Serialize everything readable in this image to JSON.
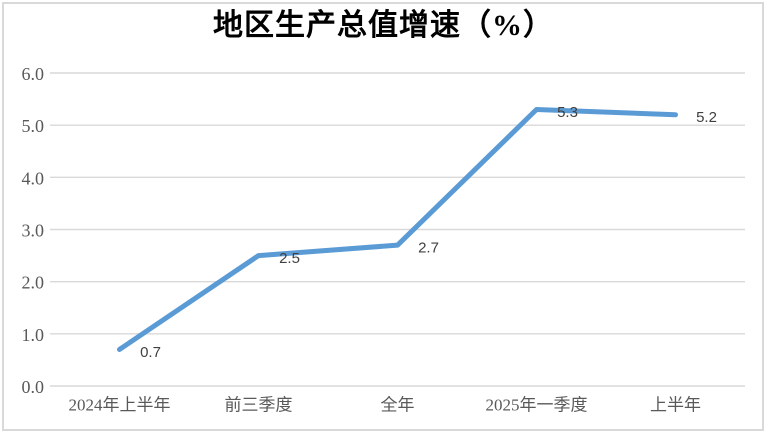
{
  "chart_data": {
    "type": "line",
    "title": "地区生产总值增速（%）",
    "categories": [
      "2024年上半年",
      "前三季度",
      "全年",
      "2025年一季度",
      "上半年"
    ],
    "values": [
      0.7,
      2.5,
      2.7,
      5.3,
      5.2
    ],
    "data_labels": [
      "0.7",
      "2.5",
      "2.7",
      "5.3",
      "5.2"
    ],
    "y_ticks": [
      "0.0",
      "1.0",
      "2.0",
      "3.0",
      "4.0",
      "5.0",
      "6.0"
    ],
    "ylim": [
      0,
      6
    ],
    "grid": true,
    "legend": "none",
    "colors": {
      "line": "#5b9bd5",
      "gridline": "#d9d9d9",
      "border": "#d9d9d9",
      "tick_label": "#595959",
      "data_label": "#404040",
      "title": "#000000",
      "background": "#ffffff"
    }
  }
}
